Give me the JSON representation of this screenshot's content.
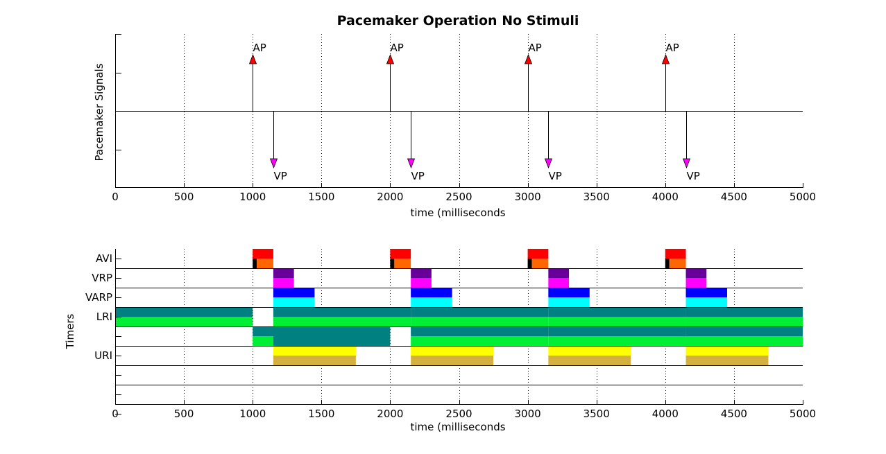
{
  "chart_data": [
    {
      "type": "event",
      "title": "Pacemaker Operation No Stimuli",
      "xlabel": "time (milliseconds",
      "ylabel": "Pacemaker Signals",
      "xlim": [
        0,
        5000
      ],
      "xticks": [
        0,
        500,
        1000,
        1500,
        2000,
        2500,
        3000,
        3500,
        4000,
        4500,
        5000
      ],
      "grid": "vertical dotted",
      "events": [
        {
          "label": "AP",
          "t": 1000,
          "direction": "up",
          "color": "#ff0000"
        },
        {
          "label": "VP",
          "t": 1150,
          "direction": "down",
          "color": "#ff00ff"
        },
        {
          "label": "AP",
          "t": 2000,
          "direction": "up",
          "color": "#ff0000"
        },
        {
          "label": "VP",
          "t": 2150,
          "direction": "down",
          "color": "#ff00ff"
        },
        {
          "label": "AP",
          "t": 3000,
          "direction": "up",
          "color": "#ff0000"
        },
        {
          "label": "VP",
          "t": 3150,
          "direction": "down",
          "color": "#ff00ff"
        },
        {
          "label": "AP",
          "t": 4000,
          "direction": "up",
          "color": "#ff0000"
        },
        {
          "label": "VP",
          "t": 4150,
          "direction": "down",
          "color": "#ff00ff"
        }
      ]
    },
    {
      "type": "timeline",
      "xlabel": "time (milliseconds",
      "ylabel": "Timers",
      "xlim": [
        0,
        5000
      ],
      "xticks": [
        0,
        500,
        1000,
        1500,
        2000,
        2500,
        3000,
        3500,
        4000,
        4500,
        5000
      ],
      "grid": "vertical dotted",
      "rows": [
        {
          "name": "AVI",
          "bars": [
            {
              "sub": "top",
              "start": 1000,
              "end": 1150,
              "color": "#ff0000"
            },
            {
              "sub": "bottom",
              "start": 1000,
              "end": 1030,
              "color": "#000000"
            },
            {
              "sub": "bottom",
              "start": 1030,
              "end": 1150,
              "color": "#ff6600"
            },
            {
              "sub": "top",
              "start": 2000,
              "end": 2150,
              "color": "#ff0000"
            },
            {
              "sub": "bottom",
              "start": 2000,
              "end": 2030,
              "color": "#000000"
            },
            {
              "sub": "bottom",
              "start": 2030,
              "end": 2150,
              "color": "#ff6600"
            },
            {
              "sub": "top",
              "start": 3000,
              "end": 3150,
              "color": "#ff0000"
            },
            {
              "sub": "bottom",
              "start": 3000,
              "end": 3030,
              "color": "#000000"
            },
            {
              "sub": "bottom",
              "start": 3030,
              "end": 3150,
              "color": "#ff6600"
            },
            {
              "sub": "top",
              "start": 4000,
              "end": 4150,
              "color": "#ff0000"
            },
            {
              "sub": "bottom",
              "start": 4000,
              "end": 4030,
              "color": "#000000"
            },
            {
              "sub": "bottom",
              "start": 4030,
              "end": 4150,
              "color": "#ff6600"
            }
          ]
        },
        {
          "name": "VRP",
          "bars": [
            {
              "sub": "top",
              "start": 1150,
              "end": 1300,
              "color": "#660099"
            },
            {
              "sub": "bottom",
              "start": 1150,
              "end": 1300,
              "color": "#ff00ff"
            },
            {
              "sub": "top",
              "start": 2150,
              "end": 2300,
              "color": "#660099"
            },
            {
              "sub": "bottom",
              "start": 2150,
              "end": 2300,
              "color": "#ff00ff"
            },
            {
              "sub": "top",
              "start": 3150,
              "end": 3300,
              "color": "#660099"
            },
            {
              "sub": "bottom",
              "start": 3150,
              "end": 3300,
              "color": "#ff00ff"
            },
            {
              "sub": "top",
              "start": 4150,
              "end": 4300,
              "color": "#660099"
            },
            {
              "sub": "bottom",
              "start": 4150,
              "end": 4300,
              "color": "#ff00ff"
            }
          ]
        },
        {
          "name": "VARP",
          "bars": [
            {
              "sub": "top",
              "start": 1150,
              "end": 1450,
              "color": "#0000ff"
            },
            {
              "sub": "bottom",
              "start": 1150,
              "end": 1450,
              "color": "#00ffff"
            },
            {
              "sub": "top",
              "start": 2150,
              "end": 2450,
              "color": "#0000ff"
            },
            {
              "sub": "bottom",
              "start": 2150,
              "end": 2450,
              "color": "#00ffff"
            },
            {
              "sub": "top",
              "start": 3150,
              "end": 3450,
              "color": "#0000ff"
            },
            {
              "sub": "bottom",
              "start": 3150,
              "end": 3450,
              "color": "#00ffff"
            },
            {
              "sub": "top",
              "start": 4150,
              "end": 4450,
              "color": "#0000ff"
            },
            {
              "sub": "bottom",
              "start": 4150,
              "end": 4450,
              "color": "#00ffff"
            }
          ]
        },
        {
          "name": "LRI",
          "bars": [
            {
              "sub": "top",
              "start": 0,
              "end": 1000,
              "color": "#008080"
            },
            {
              "sub": "bottom",
              "start": 0,
              "end": 1000,
              "color": "#00ee33"
            },
            {
              "sub": "top",
              "start": 1150,
              "end": 2150,
              "color": "#008080"
            },
            {
              "sub": "bottom",
              "start": 1150,
              "end": 2150,
              "color": "#00ee33"
            },
            {
              "sub": "top",
              "start": 2150,
              "end": 3150,
              "color": "#008080"
            },
            {
              "sub": "bottom",
              "start": 2150,
              "end": 3150,
              "color": "#00ee33"
            },
            {
              "sub": "top",
              "start": 3150,
              "end": 4150,
              "color": "#008080"
            },
            {
              "sub": "bottom",
              "start": 3150,
              "end": 4150,
              "color": "#00ee33"
            },
            {
              "sub": "top",
              "start": 4150,
              "end": 5000,
              "color": "#008080"
            },
            {
              "sub": "bottom",
              "start": 4150,
              "end": 5000,
              "color": "#00ee33"
            }
          ]
        },
        {
          "name": "",
          "bars": [
            {
              "sub": "top",
              "start": 1000,
              "end": 2000,
              "color": "#008080"
            },
            {
              "sub": "bottom",
              "start": 1000,
              "end": 1150,
              "color": "#00ee33"
            },
            {
              "sub": "bottom",
              "start": 1150,
              "end": 2000,
              "color": "#008080"
            },
            {
              "sub": "top",
              "start": 2150,
              "end": 3150,
              "color": "#008080"
            },
            {
              "sub": "bottom",
              "start": 2150,
              "end": 3150,
              "color": "#00ee33"
            },
            {
              "sub": "top",
              "start": 3150,
              "end": 4150,
              "color": "#008080"
            },
            {
              "sub": "bottom",
              "start": 3150,
              "end": 4150,
              "color": "#00ee33"
            },
            {
              "sub": "top",
              "start": 4150,
              "end": 5000,
              "color": "#008080"
            },
            {
              "sub": "bottom",
              "start": 4150,
              "end": 5000,
              "color": "#00ee33"
            }
          ]
        },
        {
          "name": "URI",
          "bars": [
            {
              "sub": "top",
              "start": 1150,
              "end": 1750,
              "color": "#ffff00"
            },
            {
              "sub": "bottom",
              "start": 1150,
              "end": 1750,
              "color": "#d4b13f"
            },
            {
              "sub": "top",
              "start": 2150,
              "end": 2750,
              "color": "#ffff00"
            },
            {
              "sub": "bottom",
              "start": 2150,
              "end": 2750,
              "color": "#d4b13f"
            },
            {
              "sub": "top",
              "start": 3150,
              "end": 3750,
              "color": "#ffff00"
            },
            {
              "sub": "bottom",
              "start": 3150,
              "end": 3750,
              "color": "#d4b13f"
            },
            {
              "sub": "top",
              "start": 4150,
              "end": 4750,
              "color": "#ffff00"
            },
            {
              "sub": "bottom",
              "start": 4150,
              "end": 4750,
              "color": "#d4b13f"
            }
          ]
        },
        {
          "name": "",
          "bars": []
        },
        {
          "name": "",
          "bars": []
        },
        {
          "name": "",
          "bars": []
        }
      ]
    }
  ]
}
